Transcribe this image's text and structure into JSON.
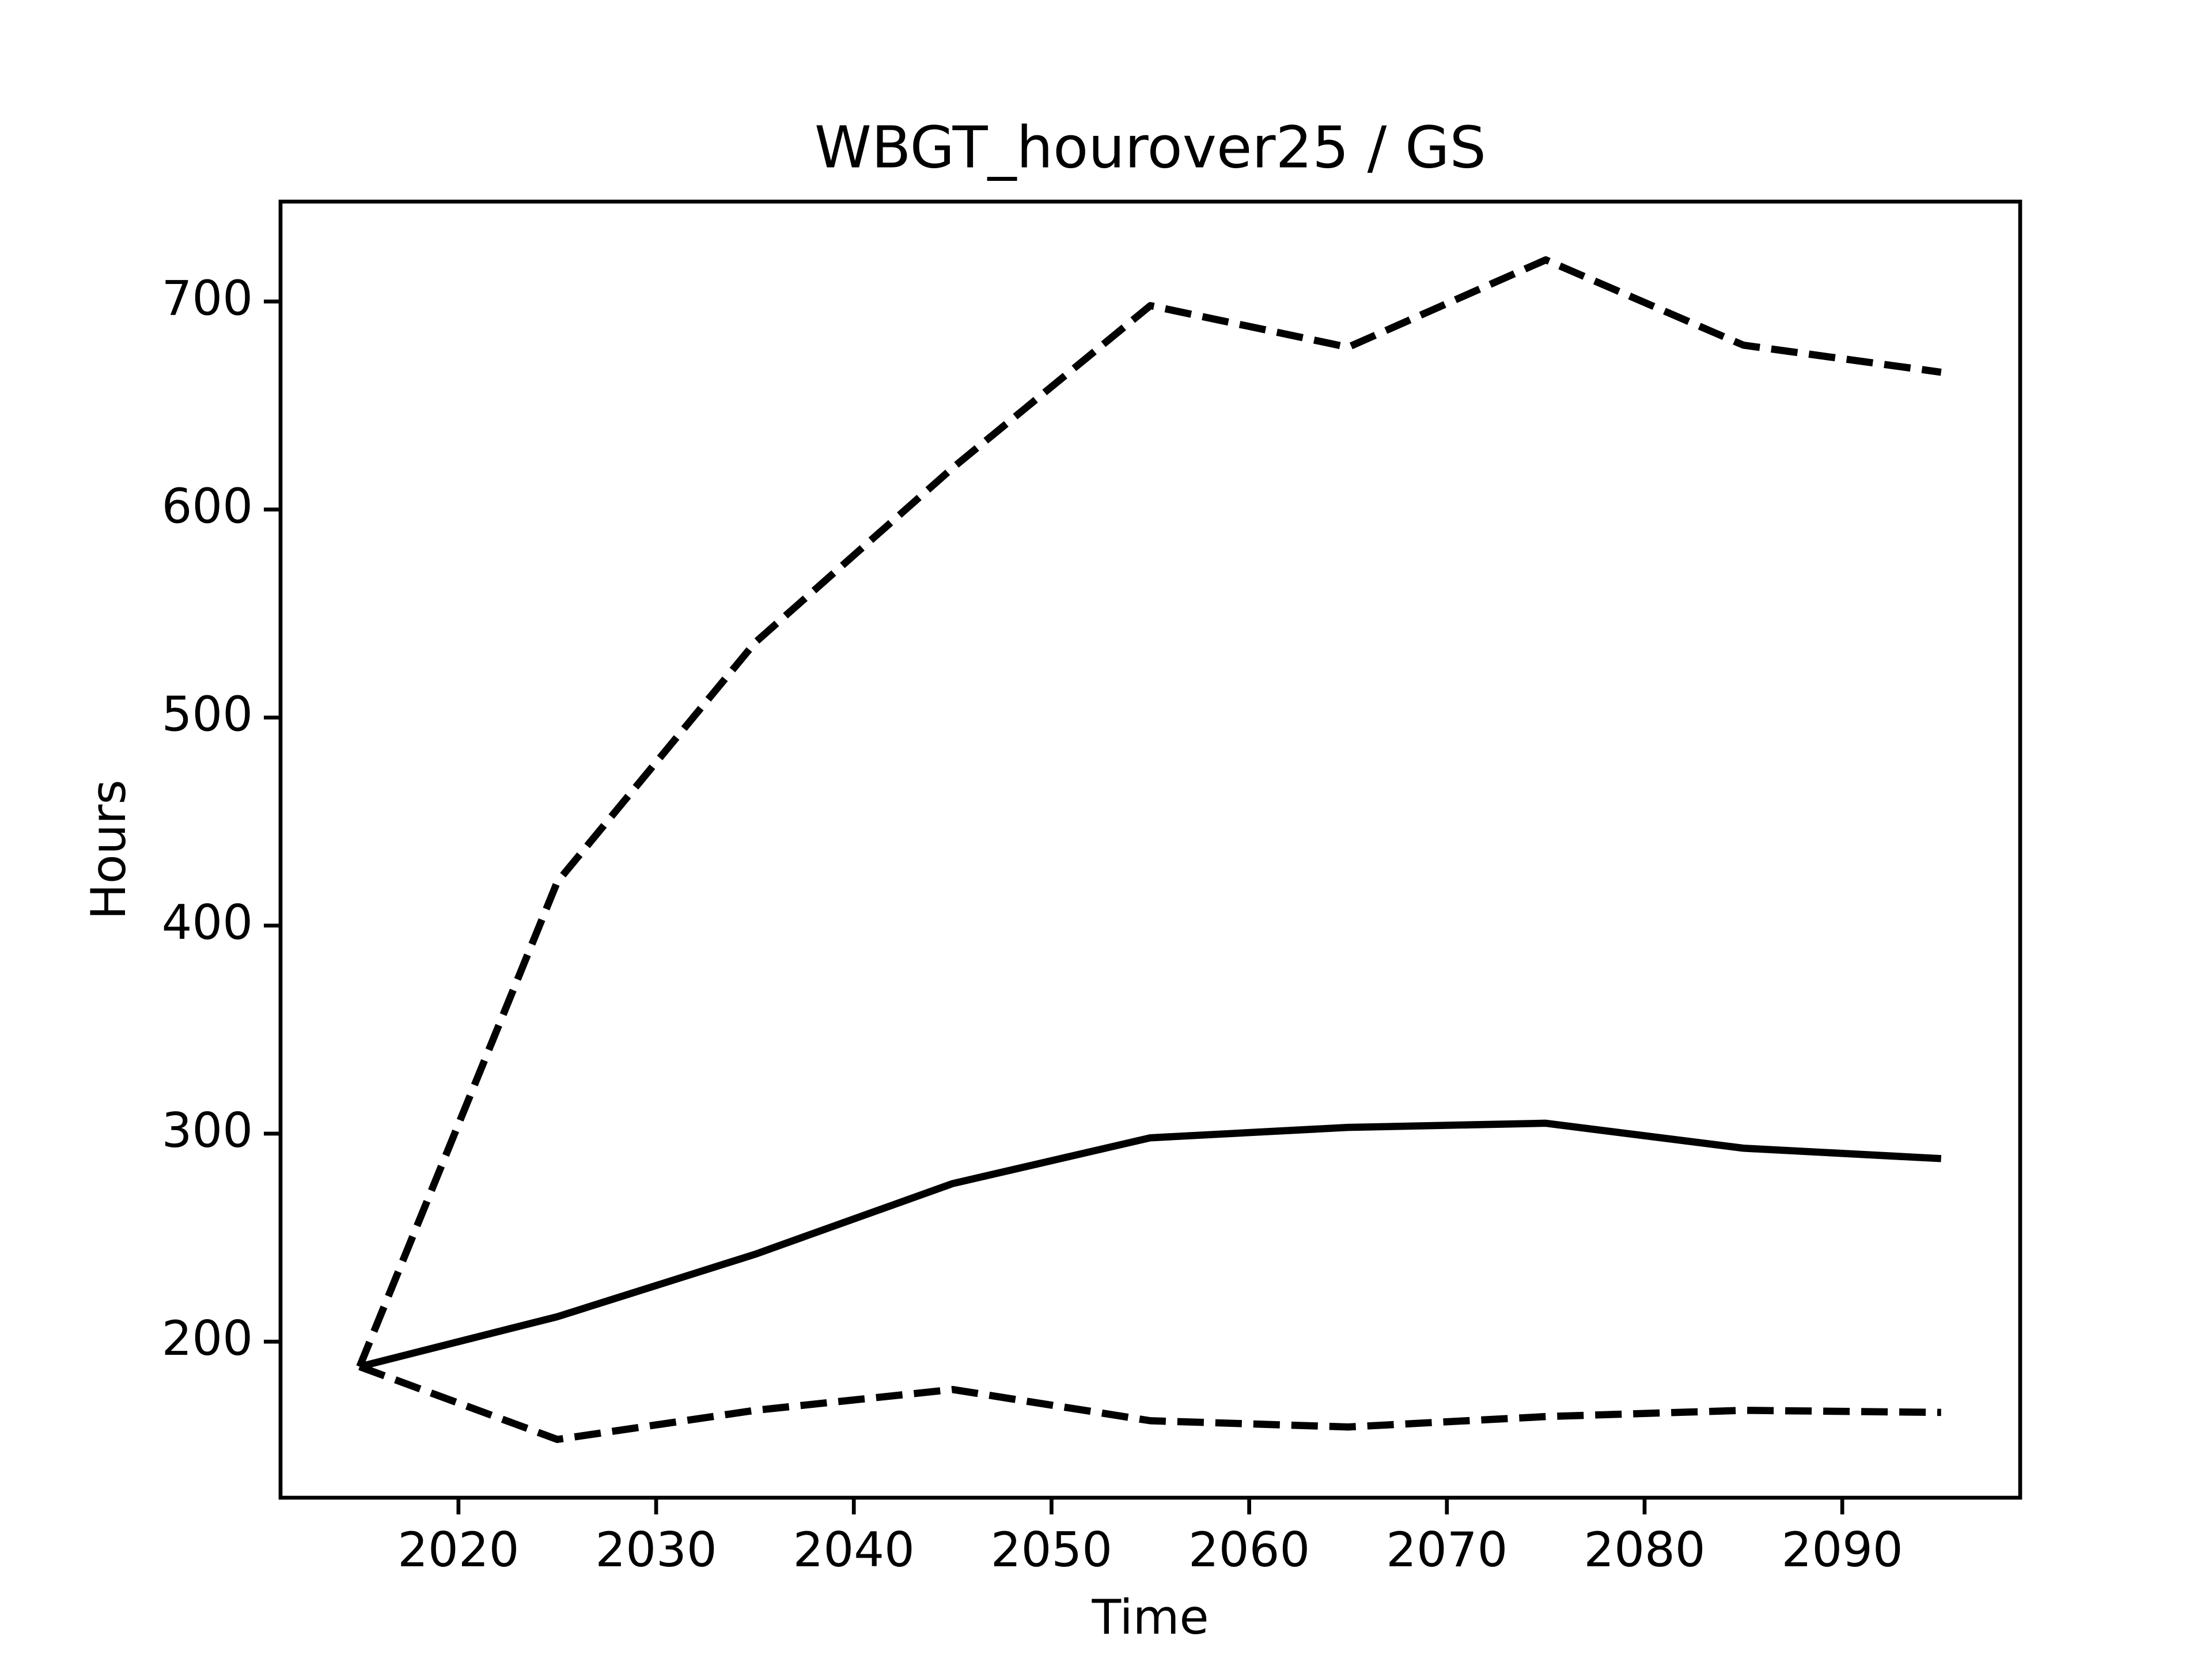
{
  "chart_data": {
    "type": "line",
    "title": "WBGT_hourover25 / GS",
    "x_label": "Time",
    "y_label": "Hours",
    "x": [
      2015,
      2025,
      2035,
      2045,
      2055,
      2065,
      2075,
      2085,
      2095
    ],
    "series": [
      {
        "color": "#000000",
        "linestyle": "solid",
        "values": [
          188,
          212,
          242,
          276,
          298,
          303,
          305,
          293,
          288
        ]
      },
      {
        "color": "#000000",
        "linestyle": "dashed",
        "values": [
          188,
          421,
          536,
          620,
          698,
          678,
          720,
          679,
          666
        ]
      },
      {
        "color": "#000000",
        "linestyle": "dashed",
        "values": [
          188,
          153,
          167,
          177,
          162,
          159,
          164,
          167,
          166
        ]
      }
    ],
    "xlim": [
      2011,
      2099
    ],
    "ylim": [
      125,
      748
    ],
    "xticks": [
      2020,
      2030,
      2040,
      2050,
      2060,
      2070,
      2080,
      2090
    ],
    "yticks": [
      200,
      300,
      400,
      500,
      600,
      700
    ],
    "grid": false
  }
}
